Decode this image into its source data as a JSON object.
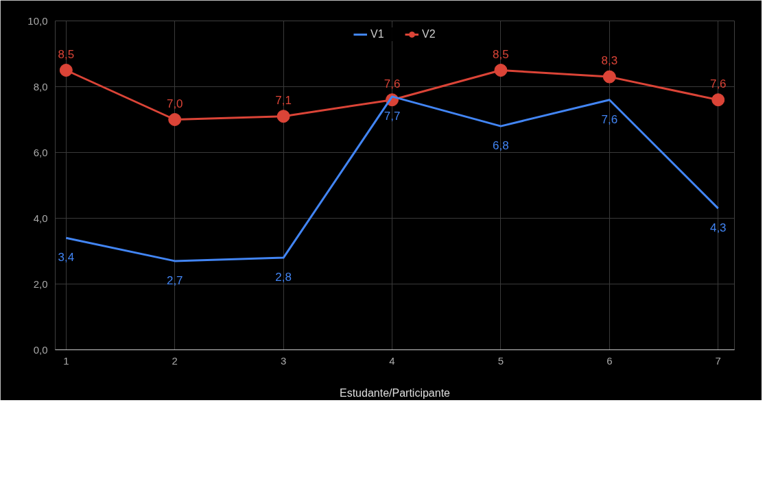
{
  "chart_data": {
    "type": "line",
    "xlabel": "Estudante/Participante",
    "x": [
      1,
      2,
      3,
      4,
      5,
      6,
      7
    ],
    "xlim": [
      0.9,
      7.15
    ],
    "xticks": [
      1,
      2,
      3,
      4,
      5,
      6,
      7
    ],
    "ylim": [
      0,
      10
    ],
    "yticks": [
      {
        "value": 0,
        "label": "0,0"
      },
      {
        "value": 2,
        "label": "2,0"
      },
      {
        "value": 4,
        "label": "4,0"
      },
      {
        "value": 6,
        "label": "6,0"
      },
      {
        "value": 8,
        "label": "8,0"
      },
      {
        "value": 10,
        "label": "10,0"
      }
    ],
    "series": [
      {
        "name": "V1",
        "color": "#4285f4",
        "marker": "none",
        "values": [
          3.4,
          2.7,
          2.8,
          7.7,
          6.8,
          7.6,
          4.3
        ],
        "value_labels": [
          "3,4",
          "2,7",
          "2,8",
          "7,7",
          "6,8",
          "7,6",
          "4,3"
        ]
      },
      {
        "name": "V2",
        "color": "#db4437",
        "marker": "circle",
        "values": [
          8.5,
          7.0,
          7.1,
          7.6,
          8.5,
          8.3,
          7.6
        ],
        "value_labels": [
          "8,5",
          "7,0",
          "7,1",
          "7,6",
          "8,5",
          "8,3",
          "7,6"
        ]
      }
    ],
    "grid": true,
    "legend": "top",
    "line_style": "solid"
  }
}
